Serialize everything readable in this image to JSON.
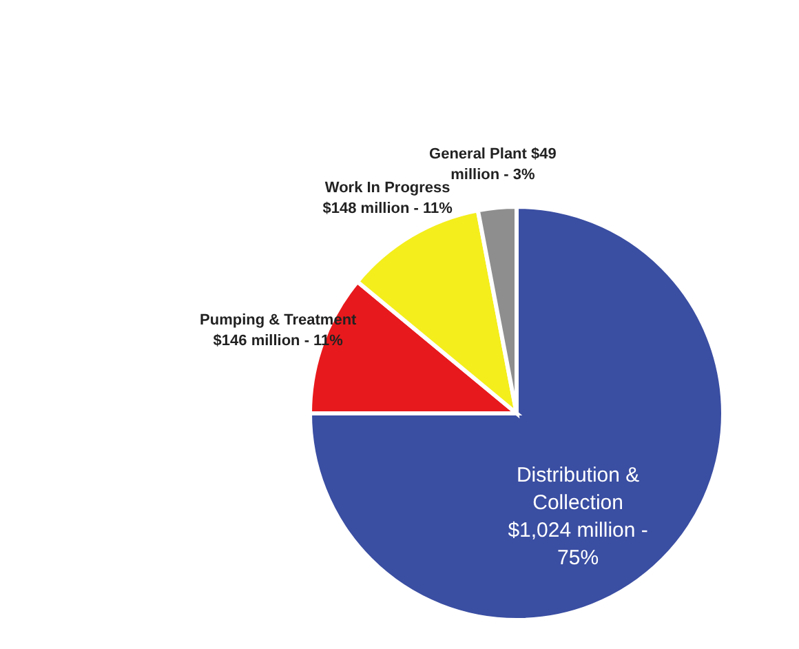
{
  "chart_data": {
    "type": "pie",
    "categories": [
      "Distribution & Collection $1,024 million - 75%",
      "Pumping & Treatment $146 million - 11%",
      "Work In Progress $148 million - 11%",
      "General Plant $49 million - 3%"
    ],
    "values": [
      75,
      11,
      11,
      3
    ],
    "colors": [
      "#3a4ea2",
      "#e8191c",
      "#f4ee1c",
      "#8e8e8e"
    ]
  }
}
